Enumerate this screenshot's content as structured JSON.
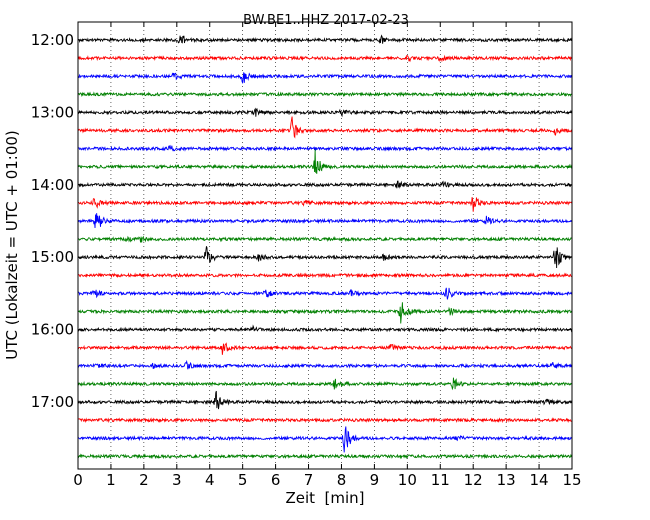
{
  "chart_data": {
    "type": "line",
    "title": "BW.BE1..HHZ 2017-02-23",
    "xlabel": "Zeit  [min]",
    "ylabel": "UTC (Lokalzeit = UTC + 01:00)",
    "xlim": [
      0,
      15
    ],
    "x_ticks": [
      "0",
      "1",
      "2",
      "3",
      "4",
      "5",
      "6",
      "7",
      "8",
      "9",
      "10",
      "11",
      "12",
      "13",
      "14",
      "15"
    ],
    "y_tick_labels": [
      "12:00",
      "13:00",
      "14:00",
      "15:00",
      "16:00",
      "17:00"
    ],
    "x_grid": "dotted vertical at every minute",
    "trace_interval_minutes": 15,
    "row_colors": [
      "#000000",
      "#ff0000",
      "#0000ff",
      "#008000"
    ],
    "rows": [
      {
        "start": "12:00",
        "events": [
          {
            "t": 3.1,
            "amp": 0.9
          },
          {
            "t": 9.2,
            "amp": 0.4
          }
        ]
      },
      {
        "start": "12:15",
        "events": [
          {
            "t": 10.0,
            "amp": 0.35
          },
          {
            "t": 11.0,
            "amp": 0.3
          }
        ]
      },
      {
        "start": "12:30",
        "events": [
          {
            "t": 2.9,
            "amp": 0.6
          },
          {
            "t": 5.0,
            "amp": 0.9
          }
        ]
      },
      {
        "start": "12:45",
        "events": []
      },
      {
        "start": "13:00",
        "events": [
          {
            "t": 5.4,
            "amp": 0.35
          },
          {
            "t": 8.0,
            "amp": 0.3
          }
        ]
      },
      {
        "start": "13:15",
        "events": [
          {
            "t": 6.5,
            "amp": 1.4
          },
          {
            "t": 14.5,
            "amp": 0.4
          }
        ]
      },
      {
        "start": "13:30",
        "events": [
          {
            "t": 2.8,
            "amp": 0.3
          }
        ]
      },
      {
        "start": "13:45",
        "events": [
          {
            "t": 7.2,
            "amp": 1.8
          }
        ]
      },
      {
        "start": "14:00",
        "events": [
          {
            "t": 9.7,
            "amp": 0.35
          },
          {
            "t": 11.1,
            "amp": 0.3
          }
        ]
      },
      {
        "start": "14:15",
        "events": [
          {
            "t": 0.5,
            "amp": 0.9
          },
          {
            "t": 6.9,
            "amp": 0.3
          },
          {
            "t": 12.0,
            "amp": 1.0
          }
        ]
      },
      {
        "start": "14:30",
        "events": [
          {
            "t": 0.55,
            "amp": 1.6
          },
          {
            "t": 12.4,
            "amp": 0.5
          }
        ]
      },
      {
        "start": "14:45",
        "events": [
          {
            "t": 1.5,
            "amp": 0.3
          },
          {
            "t": 1.9,
            "amp": 0.3
          }
        ]
      },
      {
        "start": "15:00",
        "events": [
          {
            "t": 3.9,
            "amp": 1.3
          },
          {
            "t": 5.5,
            "amp": 0.5
          },
          {
            "t": 9.3,
            "amp": 0.4
          },
          {
            "t": 14.5,
            "amp": 1.6
          }
        ]
      },
      {
        "start": "15:15",
        "events": []
      },
      {
        "start": "15:30",
        "events": [
          {
            "t": 0.5,
            "amp": 0.4
          },
          {
            "t": 5.7,
            "amp": 0.5
          },
          {
            "t": 8.3,
            "amp": 0.35
          },
          {
            "t": 11.2,
            "amp": 0.8
          }
        ]
      },
      {
        "start": "15:45",
        "events": [
          {
            "t": 9.8,
            "amp": 1.7
          },
          {
            "t": 11.3,
            "amp": 0.35
          }
        ]
      },
      {
        "start": "16:00",
        "events": [
          {
            "t": 5.3,
            "amp": 0.3
          }
        ]
      },
      {
        "start": "16:15",
        "events": [
          {
            "t": 4.4,
            "amp": 0.8
          },
          {
            "t": 9.5,
            "amp": 0.35
          }
        ]
      },
      {
        "start": "16:30",
        "events": [
          {
            "t": 0.6,
            "amp": 0.3
          },
          {
            "t": 2.3,
            "amp": 0.3
          },
          {
            "t": 3.3,
            "amp": 0.4
          },
          {
            "t": 14.4,
            "amp": 0.4
          }
        ]
      },
      {
        "start": "16:45",
        "events": [
          {
            "t": 7.8,
            "amp": 0.7
          },
          {
            "t": 11.4,
            "amp": 0.8
          }
        ]
      },
      {
        "start": "17:00",
        "events": [
          {
            "t": 4.2,
            "amp": 1.2
          },
          {
            "t": 14.2,
            "amp": 0.3
          }
        ]
      },
      {
        "start": "17:15",
        "events": []
      },
      {
        "start": "17:30",
        "events": [
          {
            "t": 8.1,
            "amp": 2.0
          },
          {
            "t": 11.5,
            "amp": 0.25
          }
        ]
      },
      {
        "start": "17:45",
        "events": []
      }
    ]
  }
}
